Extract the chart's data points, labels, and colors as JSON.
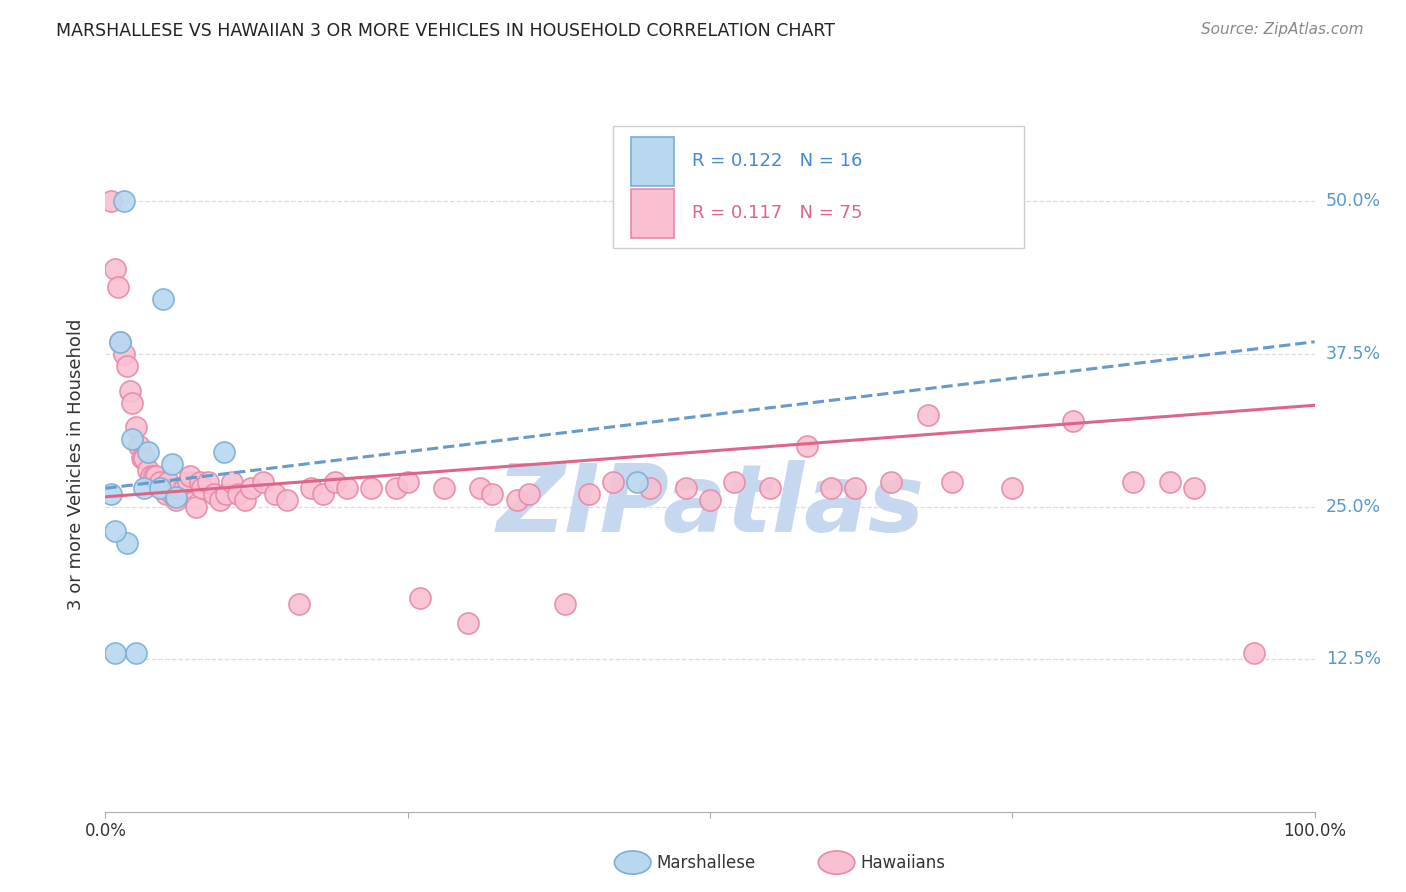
{
  "title": "MARSHALLESE VS HAWAIIAN 3 OR MORE VEHICLES IN HOUSEHOLD CORRELATION CHART",
  "source": "Source: ZipAtlas.com",
  "ylabel": "3 or more Vehicles in Household",
  "ytick_labels": [
    "12.5%",
    "25.0%",
    "37.5%",
    "50.0%"
  ],
  "ytick_values": [
    0.125,
    0.25,
    0.375,
    0.5
  ],
  "xmin": 0.0,
  "xmax": 1.0,
  "ymin": 0.0,
  "ymax": 0.57,
  "legend_blue_r": "R = 0.122",
  "legend_blue_n": "N = 16",
  "legend_pink_r": "R = 0.117",
  "legend_pink_n": "N = 75",
  "label_marshallese": "Marshallese",
  "label_hawaiians": "Hawaiians",
  "color_blue_fill": "#b8d8f0",
  "color_blue_edge": "#7aafd4",
  "color_pink_fill": "#f8c0d0",
  "color_pink_edge": "#e888a8",
  "color_blue_line": "#6699cc",
  "color_pink_line": "#dd6688",
  "color_legend_blue": "#4488cc",
  "color_legend_pink": "#dd6688",
  "color_title": "#222222",
  "color_source": "#888888",
  "color_yaxis_right": "#5599cc",
  "color_grid": "#dddddd",
  "background": "#ffffff",
  "marshallese_x": [
    0.015,
    0.048,
    0.012,
    0.005,
    0.022,
    0.035,
    0.055,
    0.032,
    0.045,
    0.058,
    0.018,
    0.008,
    0.008,
    0.025,
    0.098,
    0.44
  ],
  "marshallese_y": [
    0.5,
    0.42,
    0.385,
    0.26,
    0.305,
    0.295,
    0.285,
    0.265,
    0.265,
    0.258,
    0.22,
    0.23,
    0.13,
    0.13,
    0.295,
    0.27
  ],
  "hawaiians_x": [
    0.005,
    0.008,
    0.01,
    0.012,
    0.015,
    0.018,
    0.02,
    0.022,
    0.025,
    0.028,
    0.03,
    0.032,
    0.035,
    0.038,
    0.04,
    0.042,
    0.045,
    0.048,
    0.05,
    0.052,
    0.055,
    0.058,
    0.06,
    0.065,
    0.068,
    0.07,
    0.075,
    0.078,
    0.08,
    0.085,
    0.09,
    0.095,
    0.1,
    0.105,
    0.11,
    0.115,
    0.12,
    0.13,
    0.14,
    0.15,
    0.16,
    0.17,
    0.18,
    0.19,
    0.2,
    0.22,
    0.24,
    0.25,
    0.26,
    0.28,
    0.3,
    0.31,
    0.32,
    0.34,
    0.35,
    0.38,
    0.4,
    0.42,
    0.45,
    0.48,
    0.5,
    0.52,
    0.55,
    0.58,
    0.6,
    0.62,
    0.65,
    0.68,
    0.7,
    0.75,
    0.8,
    0.85,
    0.88,
    0.9,
    0.95
  ],
  "hawaiians_y": [
    0.5,
    0.445,
    0.43,
    0.385,
    0.375,
    0.365,
    0.345,
    0.335,
    0.315,
    0.3,
    0.29,
    0.29,
    0.28,
    0.275,
    0.275,
    0.275,
    0.27,
    0.265,
    0.26,
    0.27,
    0.26,
    0.255,
    0.265,
    0.265,
    0.27,
    0.275,
    0.25,
    0.27,
    0.265,
    0.27,
    0.26,
    0.255,
    0.26,
    0.27,
    0.26,
    0.255,
    0.265,
    0.27,
    0.26,
    0.255,
    0.17,
    0.265,
    0.26,
    0.27,
    0.265,
    0.265,
    0.265,
    0.27,
    0.175,
    0.265,
    0.155,
    0.265,
    0.26,
    0.255,
    0.26,
    0.17,
    0.26,
    0.27,
    0.265,
    0.265,
    0.255,
    0.27,
    0.265,
    0.3,
    0.265,
    0.265,
    0.27,
    0.325,
    0.27,
    0.265,
    0.32,
    0.27,
    0.27,
    0.265,
    0.13
  ],
  "watermark": "ZIPatlas",
  "watermark_color": "#c5d8f0",
  "watermark_fontsize": 68
}
